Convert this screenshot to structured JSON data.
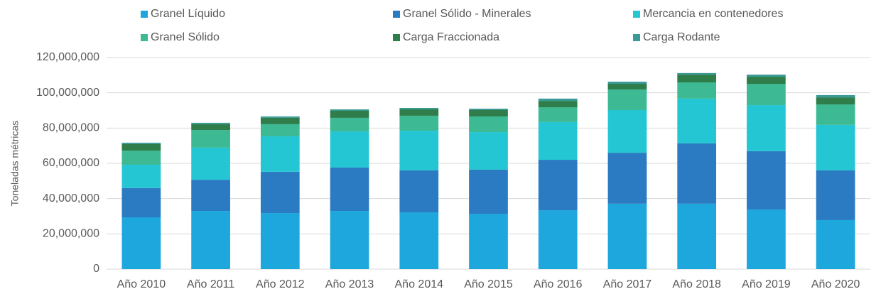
{
  "chart_data": {
    "type": "stacked_bar",
    "y_label": "Toneladas métricas",
    "categories": [
      "Año 2010",
      "Año 2011",
      "Año 2012",
      "Año 2013",
      "Año 2014",
      "Año 2015",
      "Año 2016",
      "Año 2017",
      "Año 2018",
      "Año 2019",
      "Año 2020"
    ],
    "series": [
      {
        "name": "Granel Líquido",
        "color": "#1ea7dc",
        "values": [
          29400000,
          33000000,
          31800000,
          33000000,
          32200000,
          31400000,
          33400000,
          37100000,
          37100000,
          33800000,
          27800000
        ]
      },
      {
        "name": "Granel Sólido - Minerales",
        "color": "#2a7bc2",
        "values": [
          16600000,
          17700000,
          23400000,
          24600000,
          23800000,
          25000000,
          28600000,
          28900000,
          34200000,
          33100000,
          28200000
        ]
      },
      {
        "name": "Mercancia en contenedores",
        "color": "#25c6d4",
        "values": [
          13200000,
          18200000,
          20100000,
          20500000,
          22500000,
          21300000,
          21400000,
          24200000,
          25400000,
          26100000,
          25800000
        ]
      },
      {
        "name": "Granel Sólido",
        "color": "#3db994",
        "values": [
          8000000,
          10000000,
          6900000,
          7700000,
          8500000,
          8900000,
          8400000,
          11700000,
          9200000,
          12100000,
          11600000
        ]
      },
      {
        "name": "Carga Fraccionada",
        "color": "#2e7d4a",
        "values": [
          3700000,
          3300000,
          3600000,
          4000000,
          3600000,
          3600000,
          3600000,
          3200000,
          4400000,
          4000000,
          4000000
        ]
      },
      {
        "name": "Carga Rodante",
        "color": "#3a9a96",
        "values": [
          800000,
          800000,
          800000,
          800000,
          800000,
          800000,
          1300000,
          1200000,
          900000,
          1200000,
          1300000
        ]
      }
    ],
    "ylim": [
      0,
      120000000
    ],
    "yticks": [
      0,
      {
        "value": 20000000,
        "label": "20,000,000"
      },
      {
        "value": 40000000,
        "label": "40,000,000"
      },
      {
        "value": 60000000,
        "label": "60,000,000"
      },
      {
        "value": 80000000,
        "label": "80,000,000"
      },
      {
        "value": 100000000,
        "label": "100,000,000"
      },
      {
        "value": 120000000,
        "label": "120,000,000"
      }
    ],
    "grid": true
  }
}
